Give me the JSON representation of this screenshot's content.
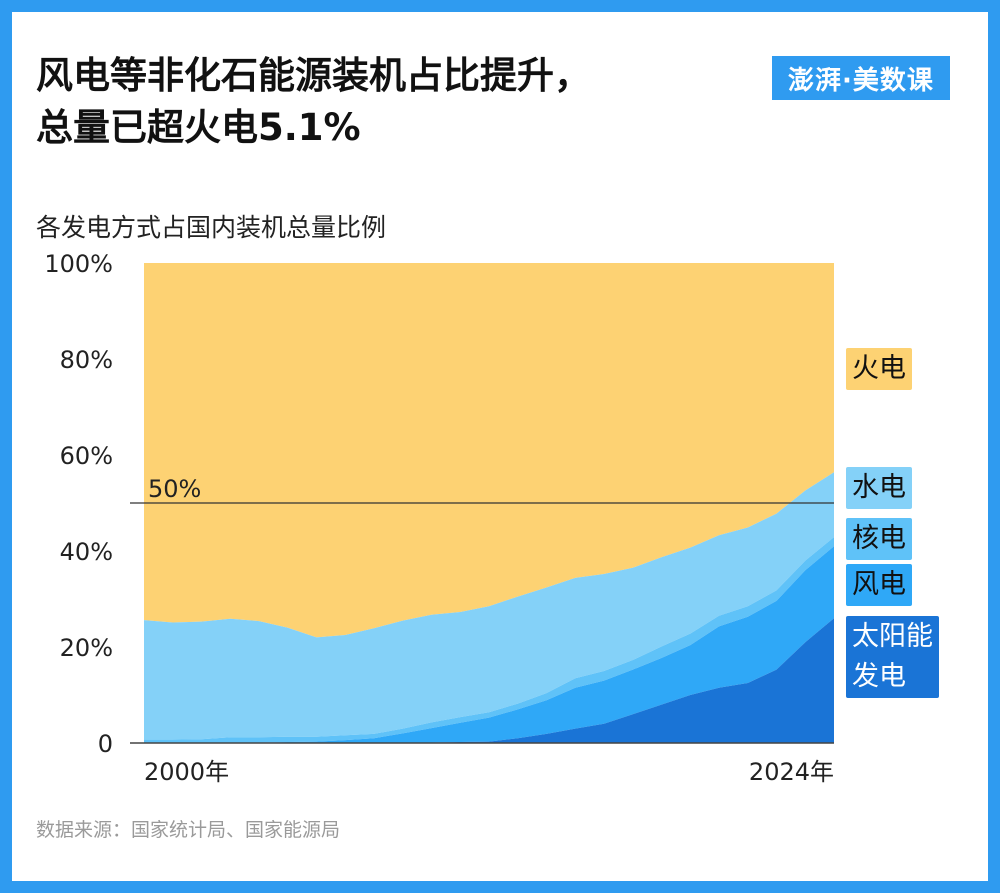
{
  "header": {
    "title_line1": "风电等非化石能源装机占比提升，",
    "title_line2": "总量已超火电5.1%",
    "logo_text": "澎湃·美数课",
    "subtitle": "各发电方式占国内装机总量比例"
  },
  "footer": {
    "source": "数据来源：国家统计局、国家能源局"
  },
  "colors": {
    "solar": "#1a74d6",
    "wind": "#2fa8f7",
    "nuclear": "#5fc2f8",
    "hydro": "#84d1f8",
    "thermal": "#fdd273",
    "frame": "#2f9bf0"
  },
  "chart_data": {
    "type": "area",
    "stacked": true,
    "title": "各发电方式占国内装机总量比例",
    "x": [
      2000,
      2001,
      2002,
      2003,
      2004,
      2005,
      2006,
      2007,
      2008,
      2009,
      2010,
      2011,
      2012,
      2013,
      2014,
      2015,
      2016,
      2017,
      2018,
      2019,
      2020,
      2021,
      2022,
      2023,
      2024
    ],
    "x_tick_labels": [
      "2000年",
      "2024年"
    ],
    "y_tick_labels": [
      "0",
      "20%",
      "40%",
      "60%",
      "80%",
      "100%"
    ],
    "ylim": [
      0,
      100
    ],
    "reference_line": {
      "value": 50,
      "label": "50%"
    },
    "series": [
      {
        "name": "太阳能发电",
        "label_text": "太阳能\n发电",
        "values": [
          0,
          0,
          0,
          0,
          0,
          0,
          0,
          0,
          0,
          0,
          0.1,
          0.2,
          0.3,
          1.0,
          1.9,
          3.0,
          4.0,
          6.0,
          8.0,
          10.0,
          11.5,
          12.5,
          15.3,
          21.0,
          26.0
        ]
      },
      {
        "name": "风电",
        "label_text": "风电",
        "values": [
          0.1,
          0.1,
          0.1,
          0.1,
          0.1,
          0.2,
          0.3,
          0.6,
          1.0,
          2.0,
          3.0,
          4.0,
          5.0,
          6.0,
          7.0,
          8.5,
          9.0,
          9.3,
          9.7,
          10.4,
          12.8,
          13.8,
          14.3,
          15.0,
          15.0
        ]
      },
      {
        "name": "核电",
        "label_text": "核电",
        "values": [
          0.6,
          0.6,
          0.7,
          1.1,
          1.1,
          1.1,
          1.0,
          1.0,
          0.9,
          1.0,
          1.2,
          1.2,
          1.1,
          1.2,
          1.5,
          2.0,
          2.0,
          2.0,
          2.4,
          2.4,
          2.2,
          2.2,
          2.2,
          2.0,
          1.9
        ]
      },
      {
        "name": "水电",
        "label_text": "水电",
        "values": [
          24.9,
          24.4,
          24.5,
          24.7,
          24.2,
          22.7,
          20.7,
          20.9,
          22.0,
          22.5,
          22.4,
          21.9,
          22.1,
          22.3,
          22.0,
          20.9,
          20.2,
          19.2,
          18.6,
          17.9,
          16.8,
          16.4,
          16.0,
          14.6,
          13.5
        ]
      },
      {
        "name": "火电",
        "label_text": "火电",
        "values": [
          74.4,
          74.9,
          74.7,
          74.1,
          74.6,
          76.0,
          78.0,
          77.5,
          76.1,
          74.5,
          73.3,
          72.7,
          71.5,
          69.5,
          67.6,
          65.6,
          64.8,
          63.5,
          61.3,
          59.3,
          56.7,
          55.1,
          52.2,
          47.4,
          43.6
        ]
      }
    ]
  }
}
